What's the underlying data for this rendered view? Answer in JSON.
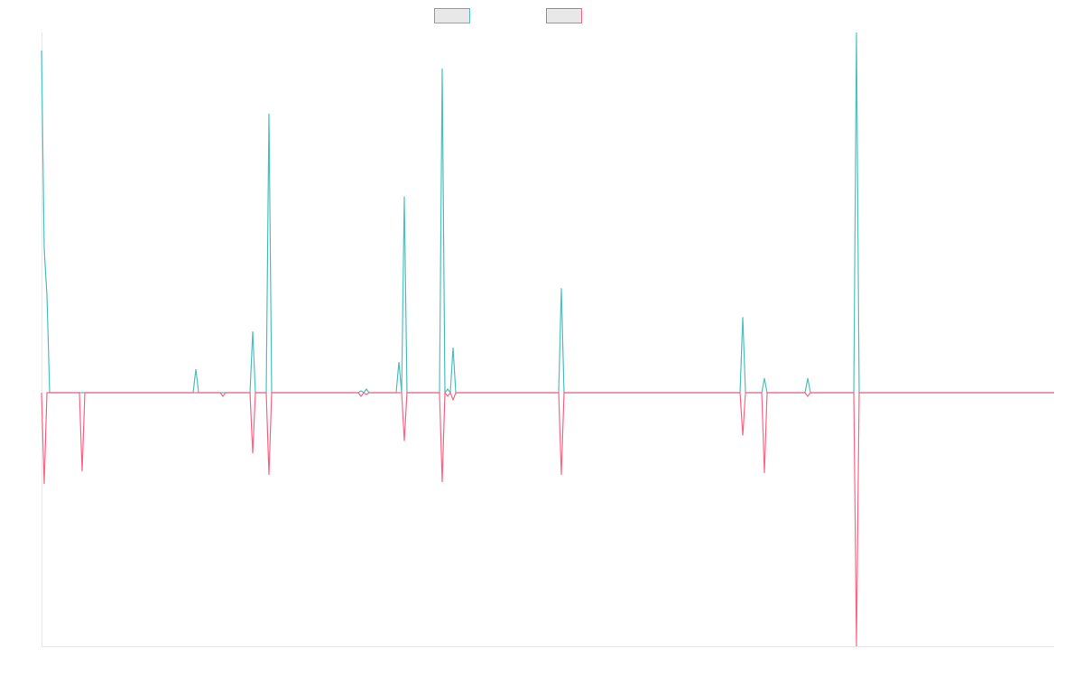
{
  "chart_data": {
    "type": "line",
    "title": "",
    "xlabel": "",
    "ylabel": "",
    "ylim": [
      -1,
      1
    ],
    "grid": false,
    "legend_position": "top-center",
    "x": [
      0,
      1,
      2,
      3,
      4,
      5,
      6,
      7,
      8,
      9,
      10,
      11,
      12,
      13,
      14,
      15,
      16,
      17,
      18,
      19,
      20,
      21,
      22,
      23,
      24,
      25,
      26,
      27,
      28,
      29,
      30,
      31,
      32,
      33,
      34,
      35,
      36,
      37,
      38,
      39,
      40,
      41,
      42,
      43,
      44,
      45,
      46,
      47,
      48,
      49,
      50,
      51,
      52,
      53,
      54,
      55,
      56,
      57,
      58,
      59,
      60,
      61,
      62,
      63,
      64,
      65,
      66,
      67,
      68,
      69,
      70,
      71,
      72,
      73,
      74,
      75,
      76,
      77,
      78,
      79,
      80,
      81,
      82,
      83,
      84,
      85,
      86,
      87,
      88,
      89,
      90,
      91,
      92,
      93,
      94,
      95,
      96,
      97,
      98,
      99,
      100,
      101,
      102,
      103,
      104,
      105,
      106,
      107,
      108,
      109,
      110,
      111,
      112,
      113,
      114,
      115,
      116,
      117,
      118,
      119,
      120,
      121,
      122,
      123,
      124,
      125,
      126,
      127,
      128,
      129,
      130,
      131,
      132,
      133,
      134,
      135,
      136,
      137,
      138,
      139,
      140,
      141,
      142,
      143,
      144,
      145,
      146,
      147,
      148,
      149,
      150,
      151,
      152,
      153,
      154,
      155,
      156,
      157,
      158,
      159,
      160,
      161,
      162,
      163,
      164,
      165,
      166,
      167,
      168,
      169,
      170,
      171,
      172,
      173,
      174,
      175,
      176,
      177,
      178,
      179,
      180,
      181,
      182,
      183,
      184,
      185,
      186,
      187,
      188,
      189,
      190,
      191,
      192,
      193,
      194,
      195,
      196,
      197,
      198,
      199,
      200,
      201,
      202,
      203,
      204,
      205,
      206,
      207,
      208,
      209,
      210,
      211,
      212,
      213,
      214,
      215,
      216,
      217,
      218,
      219,
      220,
      221,
      222,
      223,
      224,
      225,
      226,
      227,
      228,
      229,
      230,
      231,
      232,
      233,
      234,
      235,
      236,
      237,
      238,
      239,
      240,
      241,
      242,
      243,
      244,
      245,
      246,
      247,
      248,
      249,
      250,
      251,
      252,
      253,
      254,
      255,
      256,
      257,
      258,
      259,
      260,
      261,
      262,
      263,
      264,
      265,
      266,
      267,
      268,
      269,
      270,
      271,
      272,
      273,
      274,
      275,
      276,
      277,
      278,
      279,
      280,
      281,
      282,
      283,
      284,
      285,
      286,
      287,
      288,
      289,
      290,
      291,
      292,
      293,
      294,
      295,
      296,
      297,
      298,
      299,
      300,
      301,
      302,
      303,
      304,
      305,
      306,
      307,
      308,
      309,
      310,
      311,
      312,
      313,
      314,
      315,
      316,
      317,
      318,
      319,
      320,
      321,
      322,
      323,
      324,
      325,
      326,
      327,
      328,
      329,
      330,
      331,
      332,
      333,
      334,
      335,
      336,
      337,
      338,
      339,
      340,
      341,
      342,
      343,
      344,
      345,
      346,
      347,
      348,
      349,
      350,
      351,
      352,
      353,
      354,
      355,
      356,
      357,
      358,
      359,
      360,
      361,
      362,
      363,
      364,
      365,
      366,
      367,
      368,
      369,
      370,
      371,
      372,
      373,
      374
    ],
    "series": [
      {
        "name": "",
        "color": "#4bc0c0",
        "values": [
          0.95,
          0.4,
          0.27,
          0,
          0,
          0,
          0,
          0,
          0,
          0,
          0,
          0,
          0,
          0,
          0,
          0,
          0,
          0,
          0,
          0,
          0,
          0,
          0,
          0,
          0,
          0,
          0,
          0,
          0,
          0,
          0,
          0,
          0,
          0,
          0,
          0,
          0,
          0,
          0,
          0,
          0,
          0,
          0,
          0,
          0,
          0,
          0,
          0,
          0,
          0,
          0,
          0,
          0,
          0,
          0,
          0,
          0,
          0,
          0,
          0,
          0,
          0,
          0,
          0,
          0,
          0,
          0,
          0,
          0,
          0,
          0,
          0,
          0,
          0,
          0,
          0,
          0,
          0,
          0,
          0,
          0,
          0,
          0,
          0,
          0,
          0,
          0,
          0,
          0,
          0,
          0,
          0,
          0,
          0,
          0,
          0,
          0,
          0,
          0,
          0,
          0,
          0,
          0,
          0,
          0,
          0,
          0,
          0,
          0,
          0,
          0,
          0,
          0,
          0,
          0,
          0,
          0,
          0,
          0,
          0,
          0,
          0,
          0,
          0,
          0,
          0,
          0,
          0,
          0,
          0,
          0,
          0,
          0,
          0,
          0,
          0,
          0,
          0,
          0,
          0,
          0,
          0,
          0,
          0,
          0,
          0,
          0,
          0,
          0,
          0,
          0,
          0,
          0,
          0,
          0,
          0,
          0,
          0,
          0,
          0,
          0,
          0,
          0,
          0,
          0,
          0,
          0,
          0,
          0,
          0,
          0,
          0,
          0,
          0,
          0,
          0,
          0,
          0,
          0,
          0,
          0,
          0,
          0,
          0,
          0,
          0,
          0,
          0,
          0,
          0,
          0,
          0,
          0,
          0,
          0,
          0,
          0,
          0,
          0,
          0,
          0,
          0,
          0,
          0,
          0,
          0,
          0,
          0,
          0,
          0,
          0,
          0,
          0,
          0,
          0,
          0,
          0,
          0,
          0,
          0,
          0,
          0,
          0,
          0,
          0,
          0,
          0,
          0,
          0,
          0,
          0,
          0,
          0,
          0,
          0,
          0,
          0,
          0,
          0,
          0,
          0,
          0,
          0,
          0,
          0,
          0,
          0,
          0,
          0,
          0,
          0,
          0,
          0,
          0,
          0,
          0,
          0,
          0,
          0,
          0,
          0,
          0,
          0,
          0,
          0,
          0,
          0,
          0,
          0,
          0,
          0,
          0,
          0,
          0,
          0,
          0,
          0,
          0,
          0,
          0,
          0,
          0,
          0,
          0,
          0,
          0,
          0,
          0,
          0,
          0,
          0,
          0,
          0,
          0,
          0,
          0,
          0,
          0,
          0,
          0,
          0,
          0,
          0,
          0,
          0,
          0,
          0,
          0,
          0,
          0,
          0,
          0,
          0,
          0,
          0,
          0,
          0,
          0,
          0,
          0,
          0,
          0,
          0,
          0,
          0,
          0,
          0,
          0,
          0,
          0,
          0,
          0,
          0,
          0,
          0,
          0,
          0,
          0,
          0,
          0,
          0,
          0,
          0,
          0,
          0,
          0,
          0,
          0,
          0,
          0,
          0,
          0,
          0,
          0,
          0,
          0,
          0,
          0,
          0,
          0,
          0,
          0,
          0,
          0,
          0,
          0,
          0,
          0,
          0,
          0,
          0,
          0,
          0,
          0,
          0
        ],
        "spikes": [
          [
            57,
            0.065
          ],
          [
            78,
            0.17
          ],
          [
            84,
            0.775
          ],
          [
            118,
            0.005
          ],
          [
            120,
            0.01
          ],
          [
            132,
            0.085
          ],
          [
            134,
            0.545
          ],
          [
            148,
            0.9
          ],
          [
            150,
            0.01
          ],
          [
            152,
            0.125
          ],
          [
            192,
            0.29
          ],
          [
            259,
            0.21
          ],
          [
            267,
            0.04
          ],
          [
            283,
            0.04
          ],
          [
            301,
            1.0
          ]
        ]
      },
      {
        "name": "",
        "color": "#ff6384",
        "values": [
          0,
          -0.255,
          0,
          0,
          0,
          0,
          0,
          0,
          0,
          0,
          0,
          0,
          0,
          0,
          0,
          0,
          0,
          0,
          0,
          0,
          0,
          0,
          0,
          0,
          0,
          0,
          0,
          0,
          0,
          0,
          0,
          0,
          0,
          0,
          0,
          0,
          0,
          0,
          0,
          0,
          0,
          0,
          0,
          0,
          0,
          0,
          0,
          0,
          0,
          0,
          0,
          0,
          0,
          0,
          0,
          0,
          0,
          0,
          0,
          0,
          0,
          0,
          0,
          0,
          0,
          0,
          0,
          0,
          0,
          0,
          0,
          0,
          0,
          0,
          0,
          0,
          0,
          0,
          0,
          0,
          0,
          0,
          0,
          0,
          0,
          0,
          0,
          0,
          0,
          0,
          0,
          0,
          0,
          0,
          0,
          0,
          0,
          0,
          0,
          0,
          0,
          0,
          0,
          0,
          0,
          0,
          0,
          0,
          0,
          0,
          0,
          0,
          0,
          0,
          0,
          0,
          0,
          0,
          0,
          0,
          0,
          0,
          0,
          0,
          0,
          0,
          0,
          0,
          0,
          0,
          0,
          0,
          0,
          0,
          0,
          0,
          0,
          0,
          0,
          0,
          0,
          0,
          0,
          0,
          0,
          0,
          0,
          0,
          0,
          0,
          0,
          0,
          0,
          0,
          0,
          0,
          0,
          0,
          0,
          0,
          0,
          0,
          0,
          0,
          0,
          0,
          0,
          0,
          0,
          0,
          0,
          0,
          0,
          0,
          0,
          0,
          0,
          0,
          0,
          0,
          0,
          0,
          0,
          0,
          0,
          0,
          0,
          0,
          0,
          0,
          0,
          0,
          0,
          0,
          0,
          0,
          0,
          0,
          0,
          0,
          0,
          0,
          0,
          0,
          0,
          0,
          0,
          0,
          0,
          0,
          0,
          0,
          0,
          0,
          0,
          0,
          0,
          0,
          0,
          0,
          0,
          0,
          0,
          0,
          0,
          0,
          0,
          0,
          0,
          0,
          0,
          0,
          0,
          0,
          0,
          0,
          0,
          0,
          0,
          0,
          0,
          0,
          0,
          0,
          0,
          0,
          0,
          0,
          0,
          0,
          0,
          0,
          0,
          0,
          0,
          0,
          0,
          0,
          0,
          0,
          0,
          0,
          0,
          0,
          0,
          0,
          0,
          0,
          0,
          0,
          0,
          0,
          0,
          0,
          0,
          0,
          0,
          0,
          0,
          0,
          0,
          0,
          0,
          0,
          0,
          0,
          0,
          0,
          0,
          0,
          0,
          0,
          0,
          0,
          0,
          0,
          0,
          0,
          0,
          0,
          0,
          0,
          0,
          0,
          0,
          0,
          0,
          0,
          0,
          0,
          0,
          0,
          0,
          0,
          0,
          0,
          0,
          0,
          0,
          0,
          0,
          0,
          0,
          0,
          0,
          0,
          0,
          0,
          0,
          0,
          0,
          0,
          0,
          0,
          0,
          0,
          0,
          0,
          0,
          0,
          0,
          0,
          0,
          0,
          0,
          0,
          0,
          0,
          0,
          0,
          0,
          0,
          0,
          0,
          0,
          0,
          0,
          0,
          0,
          0,
          0,
          0,
          0,
          0,
          0,
          0,
          0,
          0,
          0,
          0,
          0,
          0,
          0,
          0,
          0
        ],
        "spikes": [
          [
            15,
            -0.22
          ],
          [
            67,
            -0.01
          ],
          [
            78,
            -0.17
          ],
          [
            84,
            -0.23
          ],
          [
            118,
            -0.01
          ],
          [
            120,
            -0.005
          ],
          [
            134,
            -0.135
          ],
          [
            148,
            -0.25
          ],
          [
            150,
            -0.01
          ],
          [
            152,
            -0.02
          ],
          [
            192,
            -0.23
          ],
          [
            259,
            -0.12
          ],
          [
            267,
            -0.225
          ],
          [
            283,
            -0.01
          ],
          [
            301,
            -0.71
          ]
        ]
      }
    ]
  }
}
